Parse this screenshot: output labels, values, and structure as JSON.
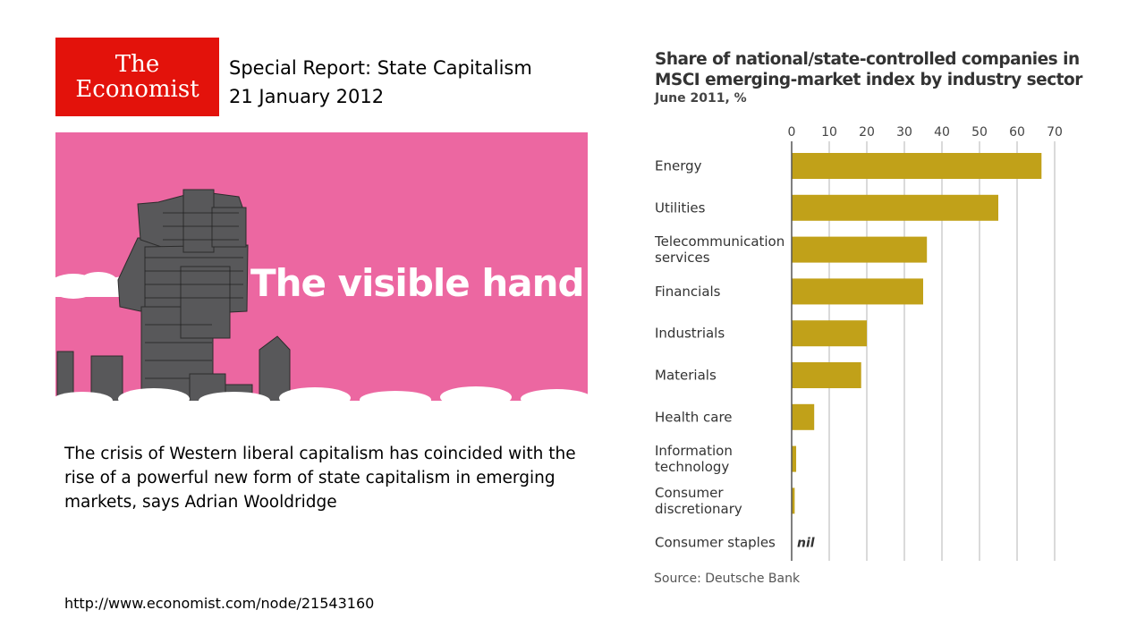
{
  "logo": {
    "line1": "The",
    "line2": "Economist"
  },
  "header": {
    "report_title": "Special Report: State Capitalism",
    "date": "21 January 2012"
  },
  "hero": {
    "title": "The visible hand",
    "background_color": "#ec67a1"
  },
  "summary": "The crisis of Western liberal capitalism has coincided with the rise of a powerful new form of state capitalism in emerging markets, says Adrian Wooldridge",
  "url": "http://www.economist.com/node/21543160",
  "chart_data": {
    "type": "bar",
    "orientation": "horizontal",
    "title": "Share of national/state-controlled companies in MSCI emerging-market index by industry sector",
    "subtitle": "June 2011, %",
    "source": "Source: Deutsche Bank",
    "xlim": [
      0,
      70
    ],
    "ticks": [
      0,
      10,
      20,
      30,
      40,
      50,
      60,
      70
    ],
    "tick_position": "top",
    "grid": true,
    "bar_color": "#c1a119",
    "categories": [
      [
        "Energy"
      ],
      [
        "Utilities"
      ],
      [
        "Telecommunication",
        "services"
      ],
      [
        "Financials"
      ],
      [
        "Industrials"
      ],
      [
        "Materials"
      ],
      [
        "Health care"
      ],
      [
        "Information",
        "technology"
      ],
      [
        "Consumer",
        "discretionary"
      ],
      [
        "Consumer staples"
      ]
    ],
    "values": [
      66.5,
      55,
      36,
      35,
      20,
      18.5,
      6,
      1.2,
      0.8,
      0
    ],
    "value_labels": [
      "",
      "",
      "",
      "",
      "",
      "",
      "",
      "",
      "",
      "nil"
    ]
  }
}
